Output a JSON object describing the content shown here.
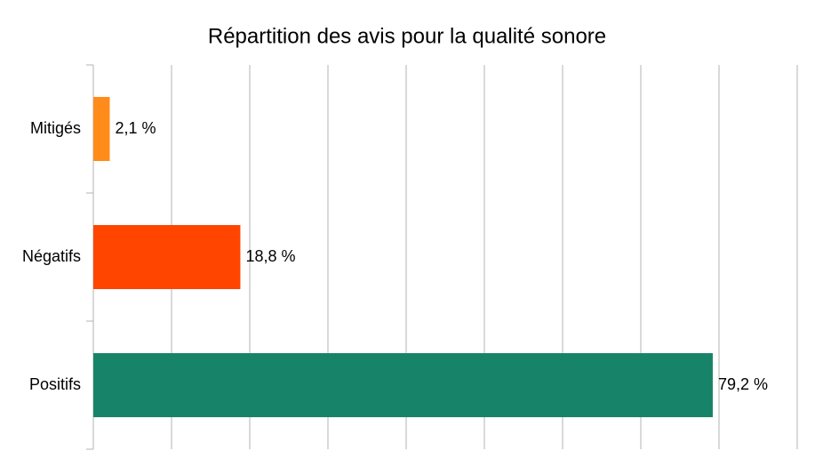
{
  "chart_data": {
    "type": "hbar",
    "title": "Répartition des avis pour la qualité sonore",
    "categories": [
      "Mitigés",
      "Négatifs",
      "Positifs"
    ],
    "values": [
      2.1,
      18.8,
      79.2
    ],
    "value_labels": [
      "2,1 %",
      "18,8 %",
      "79,2 %"
    ],
    "colors": [
      "#ff8c1a",
      "#ff4500",
      "#178469"
    ],
    "xlim": [
      0,
      90
    ],
    "xticks": [
      0,
      10,
      20,
      30,
      40,
      50,
      60,
      70,
      80,
      90
    ],
    "grid": true
  }
}
